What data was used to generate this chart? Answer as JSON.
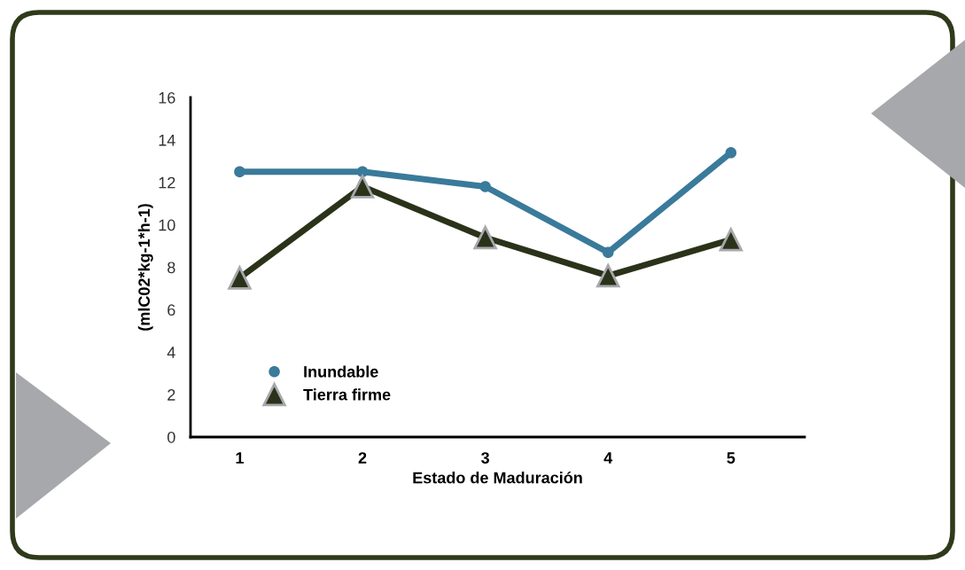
{
  "chart_data": {
    "type": "line",
    "xlabel": "Estado de Maduración",
    "ylabel": "(mlC02*kg-1*h-1)",
    "categories": [
      "1",
      "2",
      "3",
      "4",
      "5"
    ],
    "series": [
      {
        "name": "Inundable",
        "color": "#3a7a9a",
        "marker": "circle",
        "values": [
          12.5,
          12.5,
          11.8,
          8.7,
          13.4
        ]
      },
      {
        "name": "Tierra firme",
        "color": "#2b321a",
        "marker": "triangle",
        "values": [
          7.5,
          11.8,
          9.4,
          7.6,
          9.3
        ]
      }
    ],
    "ylim": [
      0,
      16
    ],
    "yticks": [
      0,
      2,
      4,
      6,
      8,
      10,
      12,
      14,
      16
    ],
    "grid": false,
    "legend": "bottom left"
  }
}
